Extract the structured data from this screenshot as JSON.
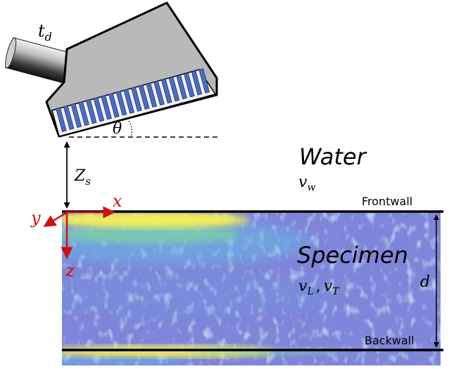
{
  "labels": {
    "probe_delay": "t",
    "probe_delay_sub": "d",
    "angle": "θ",
    "standoff": "Z",
    "standoff_sub": "s",
    "medium": "Water",
    "water_velocity": "v",
    "water_velocity_sub": "w",
    "frontwall": "Frontwall",
    "backwall": "Backwall",
    "specimen": "Specimen",
    "velocity_v": "v",
    "velocity_L_sub": "L",
    "velocity_sep": ",",
    "velocity_T_sub": "T",
    "thickness": "d",
    "axis_x": "x",
    "axis_y": "y",
    "axis_z": "z"
  },
  "colors": {
    "axes": "#cc1111",
    "specimen_base": "#7f85d8",
    "echo_yellow": "#f2ee5c",
    "echo_green": "#7cd0a8",
    "echo_cyan": "#68b8e4",
    "probe_body": "#b9b9b9",
    "probe_face": "#f0f0f0",
    "element": "#4a6cc4"
  },
  "probe": {
    "element_count": 20
  }
}
